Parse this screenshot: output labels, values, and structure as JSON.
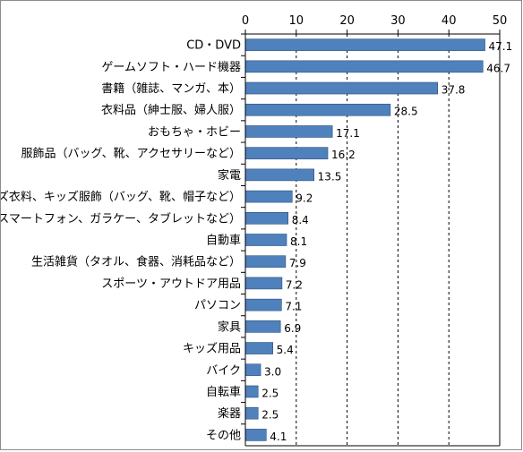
{
  "chart_data": {
    "type": "bar",
    "orientation": "horizontal",
    "title": "",
    "xlabel": "",
    "ylabel": "",
    "xlim": [
      0,
      50
    ],
    "ticks": [
      0,
      10,
      20,
      30,
      40,
      50
    ],
    "grid": "vertical-dashed",
    "legend": "none",
    "bar_color": "#4f81bd",
    "categories": [
      "CD・DVD",
      "ゲームソフト・ハード機器",
      "書籍（雑誌、マンガ、本）",
      "衣料品（紳士服、婦人服）",
      "おもちゃ・ホビー",
      "服飾品（バッグ、靴、アクセサリーなど）",
      "家電",
      "キッズ衣料、キッズ服飾（バッグ、靴、帽子など）",
      "携帯電話（スマートフォン、ガラケー、タブレットなど）",
      "自動車",
      "生活雑貨（タオル、食器、消耗品など）",
      "スポーツ・アウトドア用品",
      "パソコン",
      "家具",
      "キッズ用品",
      "バイク",
      "自転車",
      "楽器",
      "その他"
    ],
    "values": [
      47.1,
      46.7,
      37.8,
      28.5,
      17.1,
      16.2,
      13.5,
      9.2,
      8.4,
      8.1,
      7.9,
      7.2,
      7.1,
      6.9,
      5.4,
      3.0,
      2.5,
      2.5,
      4.1
    ],
    "value_labels": [
      "47.1",
      "46.7",
      "37.8",
      "28.5",
      "17.1",
      "16.2",
      "13.5",
      "9.2",
      "8.4",
      "8.1",
      "7.9",
      "7.2",
      "7.1",
      "6.9",
      "5.4",
      "3.0",
      "2.5",
      "2.5",
      "4.1"
    ]
  }
}
